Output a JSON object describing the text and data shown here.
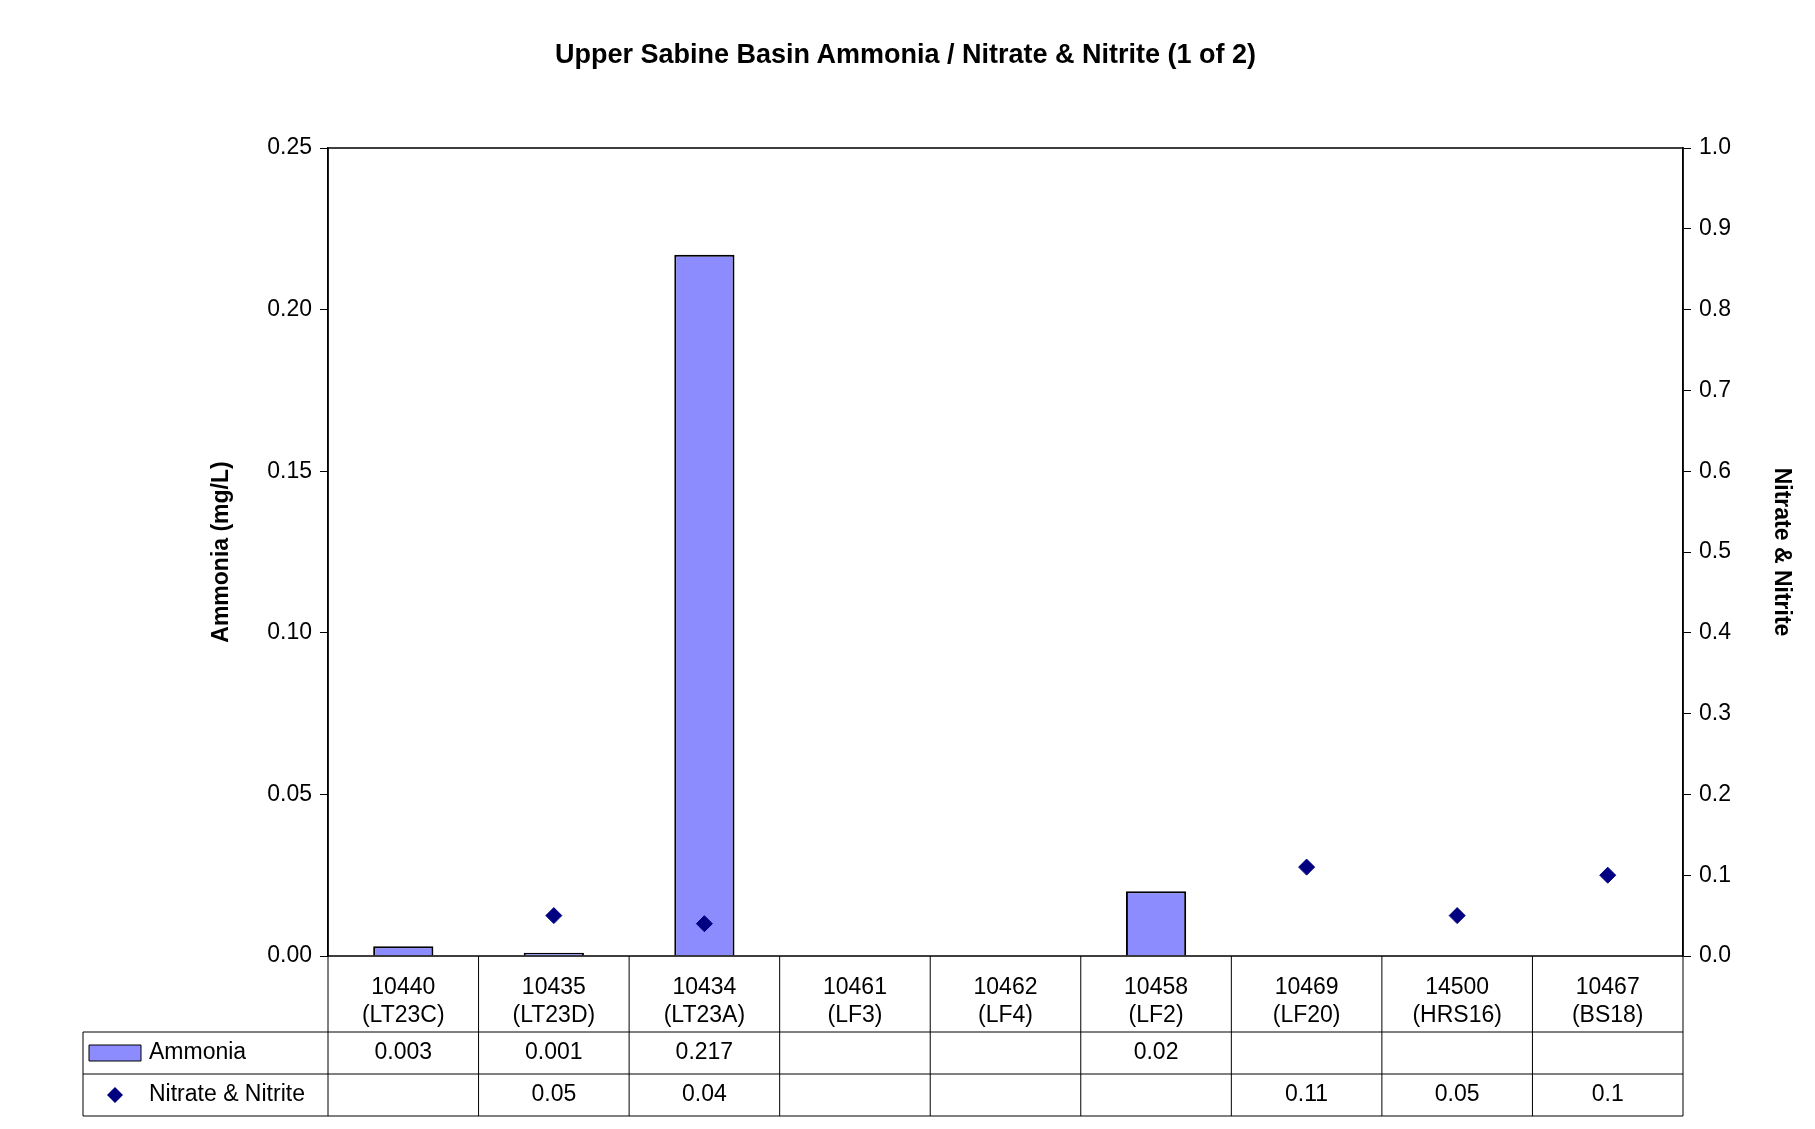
{
  "chart_data": {
    "type": "bar",
    "title": "Upper Sabine Basin Ammonia / Nitrate & Nitrite (1 of 2)",
    "ylabel": "Ammonia (mg/L)",
    "y2label": "Nitrate & Nitrite",
    "categories": [
      "10440 (LT23C)",
      "10435 (LT23D)",
      "10434 (LT23A)",
      "10461 (LF3)",
      "10462 (LF4)",
      "10458 (LF2)",
      "10469 (LF20)",
      "14500 (HRS16)",
      "10467 (BS18)"
    ],
    "series": [
      {
        "name": "Ammonia",
        "color": "#8c8cff",
        "values": [
          0.003,
          0.001,
          0.217,
          null,
          null,
          0.02,
          null,
          null,
          null
        ]
      },
      {
        "name": "Nitrate & Nitrite",
        "type": "scatter",
        "axis": "y2",
        "marker": "diamond",
        "color": "#000080",
        "values": [
          null,
          0.05,
          0.04,
          null,
          null,
          null,
          0.11,
          0.05,
          0.1
        ]
      }
    ],
    "ylim": [
      0,
      0.25
    ],
    "yticks": [
      {
        "value": 0,
        "label": "0.00"
      },
      {
        "value": 0.05,
        "label": "0.05"
      },
      {
        "value": 0.1,
        "label": "0.10"
      },
      {
        "value": 0.15,
        "label": "0.15"
      },
      {
        "value": 0.2,
        "label": "0.20"
      },
      {
        "value": 0.25,
        "label": "0.25"
      }
    ],
    "y2lim": [
      0,
      1
    ],
    "y2ticks": [
      {
        "value": 0,
        "label": "0.0"
      },
      {
        "value": 0.1,
        "label": "0.1"
      },
      {
        "value": 0.2,
        "label": "0.2"
      },
      {
        "value": 0.3,
        "label": "0.3"
      },
      {
        "value": 0.4,
        "label": "0.4"
      },
      {
        "value": 0.5,
        "label": "0.5"
      },
      {
        "value": 0.6,
        "label": "0.6"
      },
      {
        "value": 0.7,
        "label": "0.7"
      },
      {
        "value": 0.8,
        "label": "0.8"
      },
      {
        "value": 0.9,
        "label": "0.9"
      },
      {
        "value": 1,
        "label": "1.0"
      }
    ],
    "grid": false,
    "legend": "bottom",
    "data_labels": true
  }
}
